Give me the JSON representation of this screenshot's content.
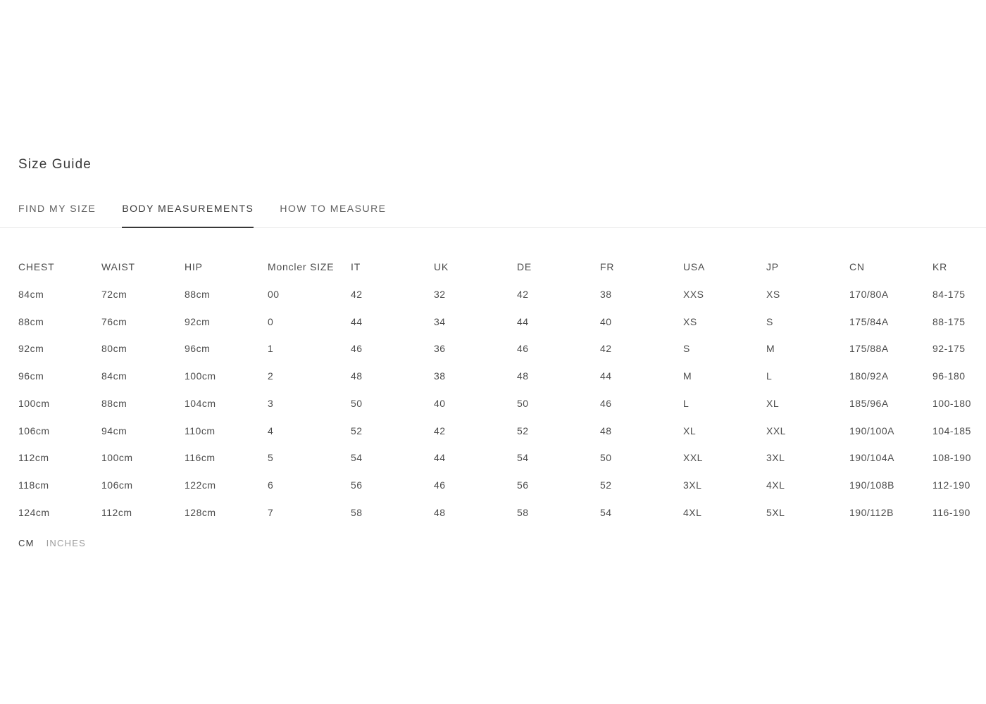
{
  "page": {
    "title": "Size Guide",
    "tabs": [
      {
        "label": "FIND MY SIZE",
        "active": false
      },
      {
        "label": "BODY MEASUREMENTS",
        "active": true
      },
      {
        "label": "HOW TO MEASURE",
        "active": false
      }
    ],
    "units": [
      {
        "label": "CM",
        "active": true
      },
      {
        "label": "INCHES",
        "active": false
      }
    ]
  },
  "table": {
    "columns": [
      "CHEST",
      "WAIST",
      "HIP",
      "Moncler SIZE",
      "IT",
      "UK",
      "DE",
      "FR",
      "USA",
      "JP",
      "CN",
      "KR"
    ],
    "rows": [
      [
        "84cm",
        "72cm",
        "88cm",
        "00",
        "42",
        "32",
        "42",
        "38",
        "XXS",
        "XS",
        "170/80A",
        "84-175"
      ],
      [
        "88cm",
        "76cm",
        "92cm",
        "0",
        "44",
        "34",
        "44",
        "40",
        "XS",
        "S",
        "175/84A",
        "88-175"
      ],
      [
        "92cm",
        "80cm",
        "96cm",
        "1",
        "46",
        "36",
        "46",
        "42",
        "S",
        "M",
        "175/88A",
        "92-175"
      ],
      [
        "96cm",
        "84cm",
        "100cm",
        "2",
        "48",
        "38",
        "48",
        "44",
        "M",
        "L",
        "180/92A",
        "96-180"
      ],
      [
        "100cm",
        "88cm",
        "104cm",
        "3",
        "50",
        "40",
        "50",
        "46",
        "L",
        "XL",
        "185/96A",
        "100-180"
      ],
      [
        "106cm",
        "94cm",
        "110cm",
        "4",
        "52",
        "42",
        "52",
        "48",
        "XL",
        "XXL",
        "190/100A",
        "104-185"
      ],
      [
        "112cm",
        "100cm",
        "116cm",
        "5",
        "54",
        "44",
        "54",
        "50",
        "XXL",
        "3XL",
        "190/104A",
        "108-190"
      ],
      [
        "118cm",
        "106cm",
        "122cm",
        "6",
        "56",
        "46",
        "56",
        "52",
        "3XL",
        "4XL",
        "190/108B",
        "112-190"
      ],
      [
        "124cm",
        "112cm",
        "128cm",
        "7",
        "58",
        "48",
        "58",
        "54",
        "4XL",
        "5XL",
        "190/112B",
        "116-190"
      ]
    ]
  },
  "colors": {
    "text": "#4c4c4c",
    "title": "#3b3b3b",
    "tab_active": "#383838",
    "tab_inactive": "#5f5f5f",
    "divider": "#e9e9e9",
    "active_underline": "#383838",
    "unit_inactive": "#9c9c9c",
    "background": "#ffffff"
  }
}
